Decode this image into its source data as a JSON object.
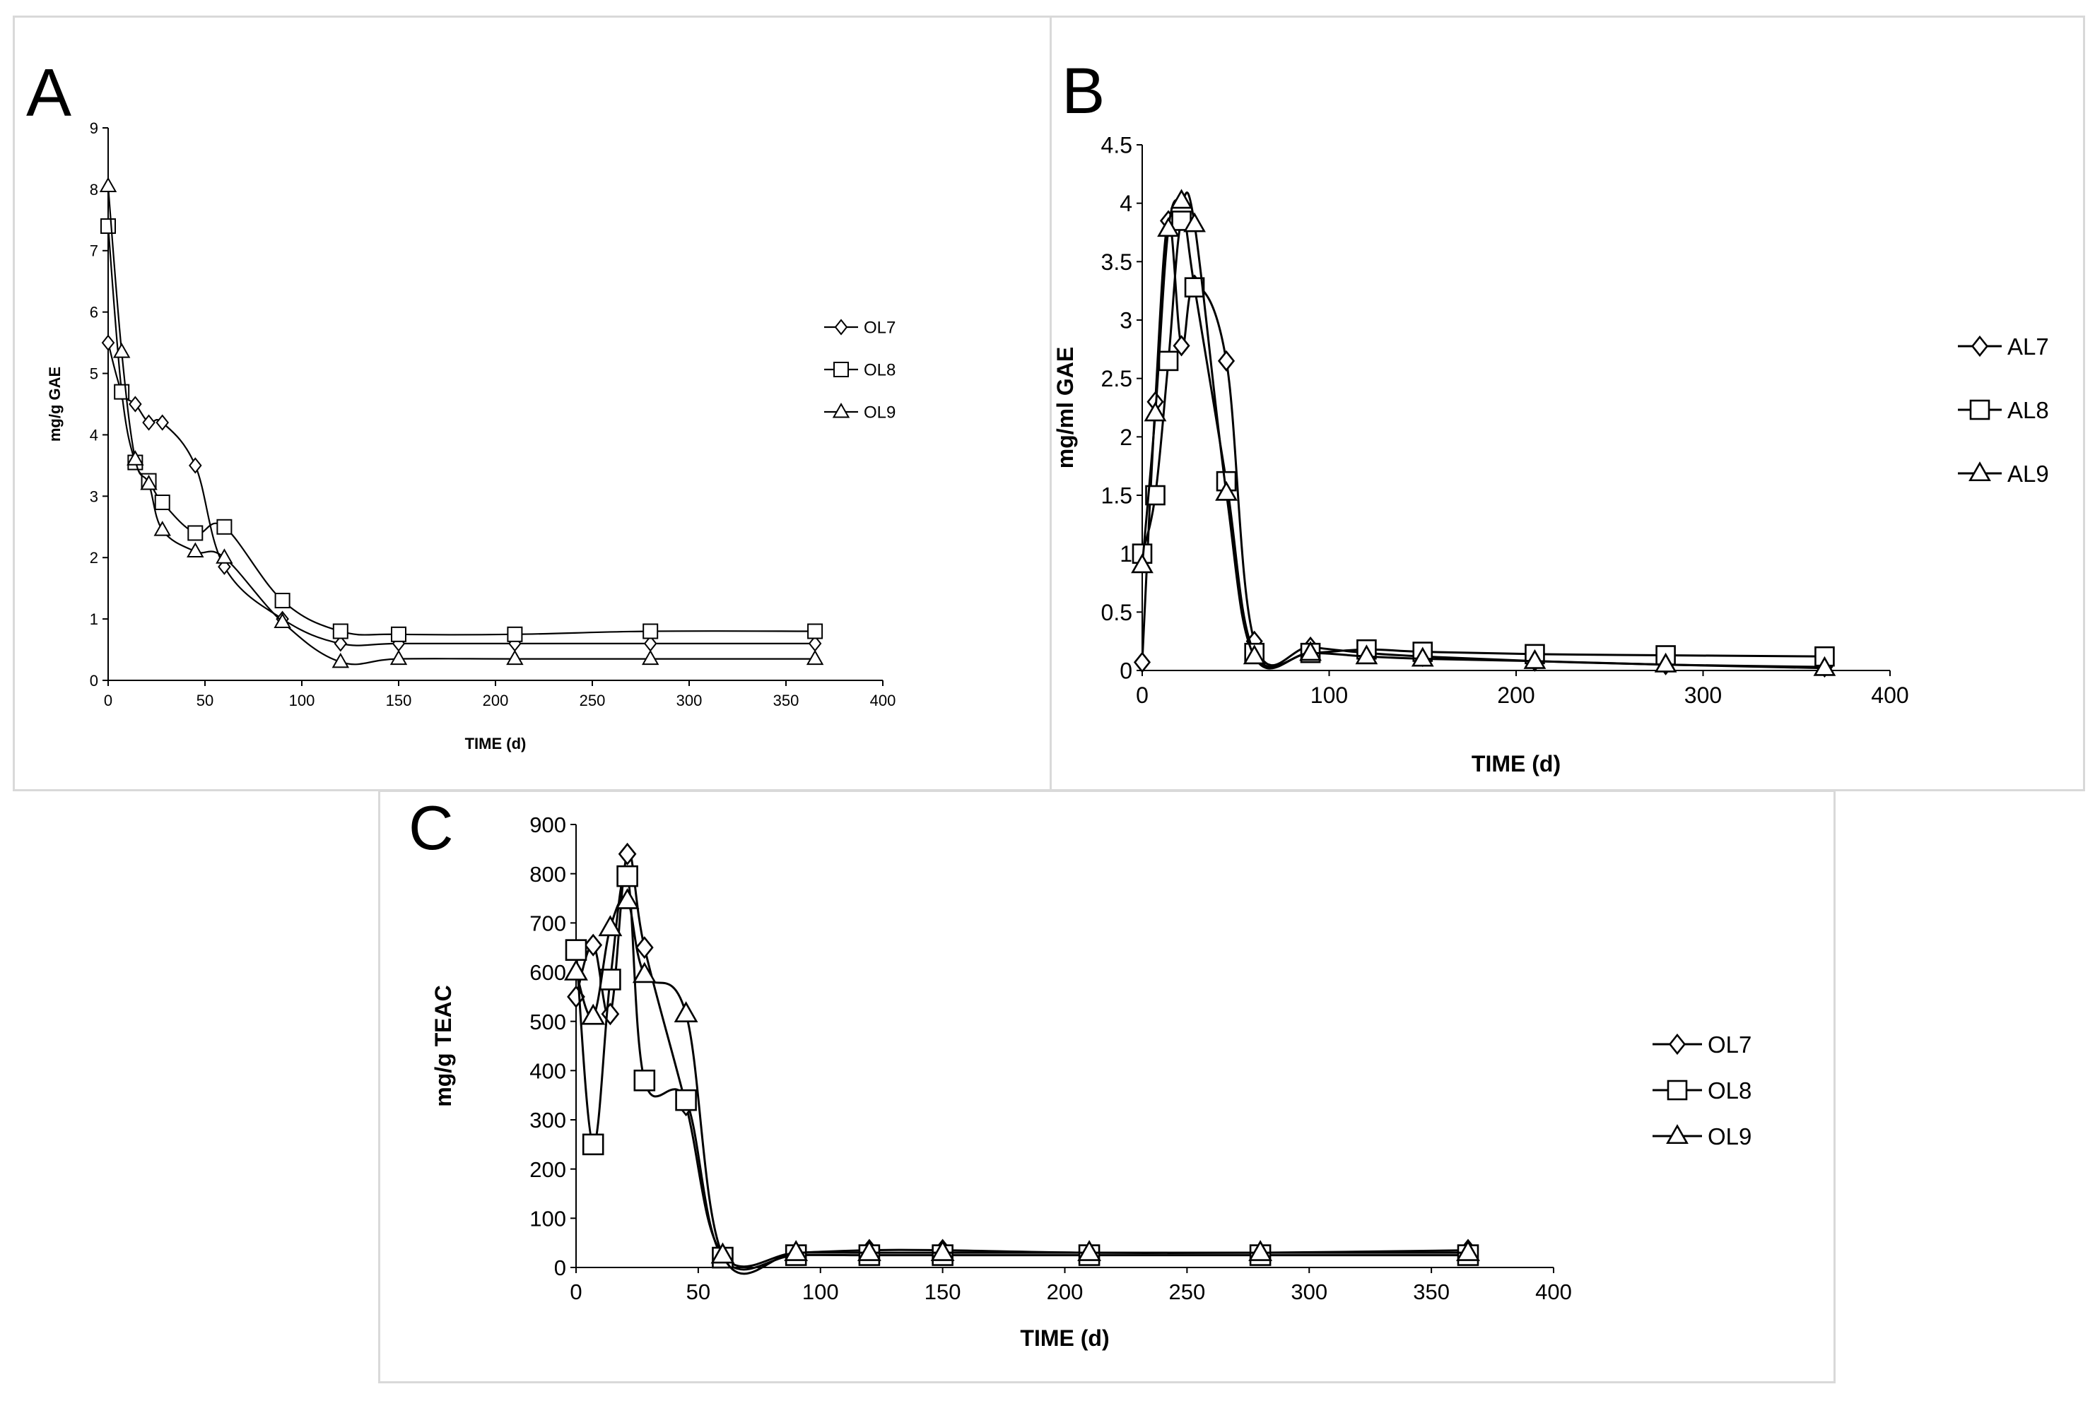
{
  "chart_data": [
    {
      "panel": "A",
      "type": "line",
      "xlabel": "TIME (d)",
      "ylabel": "mg/g GAE",
      "xlim": [
        0,
        400
      ],
      "ylim": [
        0,
        9
      ],
      "xticks": [
        0,
        50,
        100,
        150,
        200,
        250,
        300,
        350,
        400
      ],
      "yticks": [
        0,
        1,
        2,
        3,
        4,
        5,
        6,
        7,
        8,
        9
      ],
      "legend_position": "right",
      "series": [
        {
          "name": "OL7",
          "marker": "diamond",
          "x": [
            0,
            7,
            14,
            21,
            28,
            45,
            60,
            90,
            120,
            150,
            210,
            280,
            365
          ],
          "y": [
            5.5,
            4.7,
            4.5,
            4.2,
            4.2,
            3.5,
            1.85,
            1.0,
            0.6,
            0.6,
            0.6,
            0.6,
            0.6
          ]
        },
        {
          "name": "OL8",
          "marker": "square",
          "x": [
            0,
            7,
            14,
            21,
            28,
            45,
            60,
            90,
            120,
            150,
            210,
            280,
            365
          ],
          "y": [
            7.4,
            4.7,
            3.55,
            3.25,
            2.9,
            2.4,
            2.5,
            1.3,
            0.8,
            0.75,
            0.75,
            0.8,
            0.8
          ]
        },
        {
          "name": "OL9",
          "marker": "triangle",
          "x": [
            0,
            7,
            14,
            21,
            28,
            45,
            60,
            90,
            120,
            150,
            210,
            280,
            365
          ],
          "y": [
            8.05,
            5.35,
            3.6,
            3.2,
            2.45,
            2.1,
            2.0,
            0.95,
            0.3,
            0.35,
            0.35,
            0.35,
            0.35
          ]
        }
      ]
    },
    {
      "panel": "B",
      "type": "line",
      "xlabel": "TIME (d)",
      "ylabel": "mg/ml GAE",
      "xlim": [
        0,
        400
      ],
      "ylim": [
        0,
        4.5
      ],
      "xticks": [
        0,
        100,
        200,
        300,
        400
      ],
      "yticks": [
        0,
        0.5,
        1,
        1.5,
        2,
        2.5,
        3,
        3.5,
        4,
        4.5
      ],
      "legend_position": "right",
      "series": [
        {
          "name": "AL7",
          "marker": "diamond",
          "x": [
            0,
            7,
            14,
            21,
            28,
            45,
            60,
            90,
            120,
            150,
            210,
            280,
            365
          ],
          "y": [
            0.07,
            2.3,
            3.85,
            2.78,
            3.3,
            2.65,
            0.25,
            0.2,
            0.15,
            0.12,
            0.08,
            0.05,
            0.03
          ]
        },
        {
          "name": "AL8",
          "marker": "square",
          "x": [
            0,
            7,
            14,
            21,
            28,
            45,
            60,
            90,
            120,
            150,
            210,
            280,
            365
          ],
          "y": [
            1.0,
            1.5,
            2.65,
            3.85,
            3.28,
            1.62,
            0.15,
            0.15,
            0.18,
            0.16,
            0.14,
            0.13,
            0.12
          ]
        },
        {
          "name": "AL9",
          "marker": "triangle",
          "x": [
            0,
            7,
            14,
            21,
            28,
            45,
            60,
            90,
            120,
            150,
            210,
            280,
            365
          ],
          "y": [
            0.9,
            2.2,
            3.78,
            4.02,
            3.82,
            1.52,
            0.12,
            0.15,
            0.12,
            0.1,
            0.08,
            0.05,
            0.02
          ]
        }
      ]
    },
    {
      "panel": "C",
      "type": "line",
      "xlabel": "TIME (d)",
      "ylabel": "mg/g TEAC",
      "xlim": [
        0,
        400
      ],
      "ylim": [
        0,
        900
      ],
      "xticks": [
        0,
        50,
        100,
        150,
        200,
        250,
        300,
        350,
        400
      ],
      "yticks": [
        0,
        100,
        200,
        300,
        400,
        500,
        600,
        700,
        800,
        900
      ],
      "legend_position": "right",
      "series": [
        {
          "name": "OL7",
          "marker": "diamond",
          "x": [
            0,
            7,
            14,
            21,
            28,
            45,
            60,
            90,
            120,
            150,
            210,
            280,
            365
          ],
          "y": [
            550,
            655,
            515,
            840,
            650,
            330,
            25,
            30,
            35,
            35,
            30,
            30,
            35
          ]
        },
        {
          "name": "OL8",
          "marker": "square",
          "x": [
            0,
            7,
            14,
            21,
            28,
            45,
            60,
            90,
            120,
            150,
            210,
            280,
            365
          ],
          "y": [
            645,
            250,
            585,
            795,
            380,
            340,
            20,
            25,
            25,
            25,
            25,
            25,
            25
          ]
        },
        {
          "name": "OL9",
          "marker": "triangle",
          "x": [
            0,
            7,
            14,
            21,
            28,
            45,
            60,
            90,
            120,
            150,
            210,
            280,
            365
          ],
          "y": [
            600,
            510,
            690,
            745,
            595,
            515,
            25,
            30,
            30,
            30,
            30,
            30,
            30
          ]
        }
      ]
    }
  ]
}
